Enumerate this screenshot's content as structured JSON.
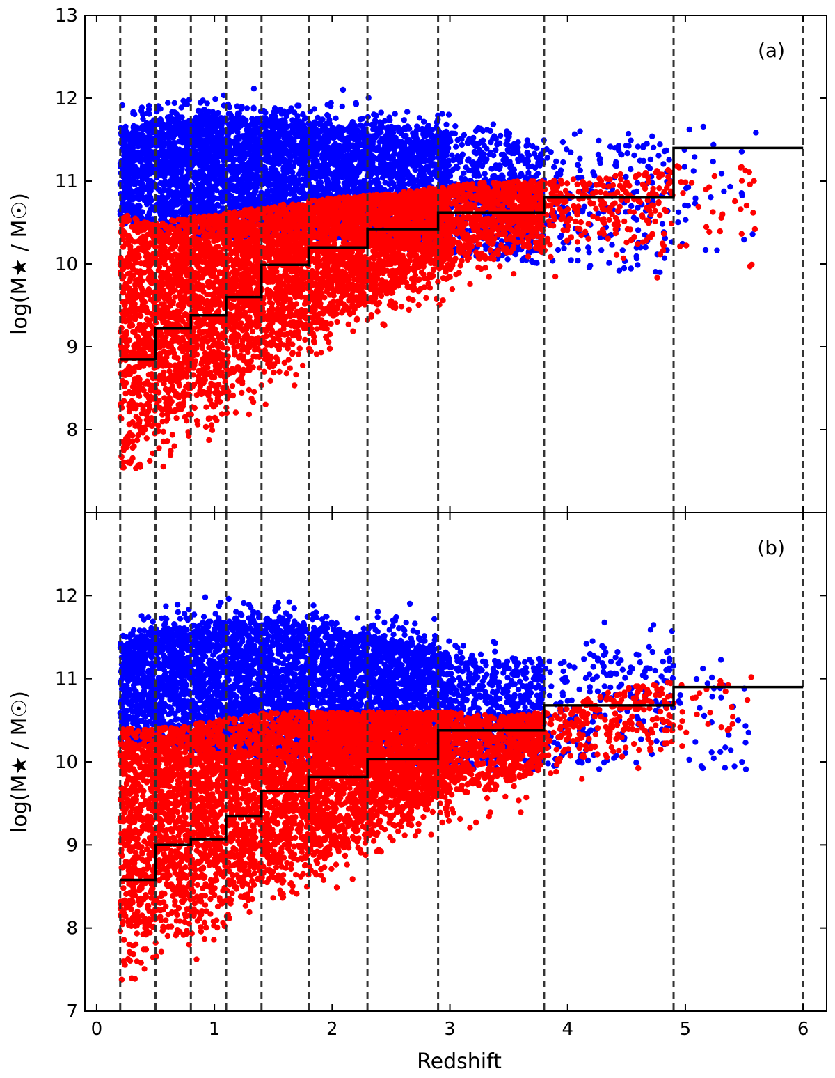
{
  "chart_data": {
    "type": "scatter",
    "xlabel": "Redshift",
    "ylabel": "log(M★ / M☉)",
    "xlim": [
      -0.1,
      6.2
    ],
    "xticks": [
      0,
      1,
      2,
      3,
      4,
      5,
      6
    ],
    "xtick_labels": [
      "0",
      "1",
      "2",
      "3",
      "4",
      "5",
      "6"
    ],
    "bin_edges": [
      0.2,
      0.5,
      0.8,
      1.1,
      1.4,
      1.8,
      2.3,
      2.9,
      3.8,
      4.9,
      6.0
    ],
    "series_legend": [
      {
        "name": "blue points",
        "color": "#0000ff"
      },
      {
        "name": "red points",
        "color": "#ff0000"
      },
      {
        "name": "mass completeness limit",
        "color": "#000000"
      }
    ],
    "panels": [
      {
        "label": "(a)",
        "ylim": [
          7,
          13
        ],
        "yticks": [
          8,
          9,
          10,
          11,
          12,
          13
        ],
        "ytick_labels": [
          "8",
          "9",
          "10",
          "11",
          "12",
          "13"
        ],
        "mass_limit": [
          8.85,
          9.22,
          9.38,
          9.6,
          9.99,
          10.2,
          10.42,
          10.62,
          10.8,
          11.4
        ],
        "blue_envelope": {
          "z": [
            0.2,
            0.5,
            1.0,
            1.5,
            2.0,
            2.5,
            3.0,
            3.5,
            3.8,
            4.5,
            5.0,
            5.5
          ],
          "upper": [
            11.6,
            11.75,
            11.8,
            11.75,
            11.7,
            11.65,
            11.6,
            11.5,
            11.4,
            11.5,
            11.55,
            11.45
          ],
          "lower": [
            10.5,
            10.4,
            10.3,
            10.3,
            10.3,
            10.2,
            10.1,
            10.05,
            10.0,
            9.9,
            9.8,
            9.9
          ]
        },
        "red_envelope": {
          "z": [
            0.2,
            0.5,
            1.0,
            1.5,
            2.0,
            2.5,
            3.0,
            3.5,
            3.8,
            4.5,
            5.0,
            5.5
          ],
          "upper": [
            10.6,
            10.5,
            10.6,
            10.7,
            10.8,
            10.85,
            10.95,
            11.0,
            11.0,
            11.1,
            11.2,
            11.25
          ],
          "lower": [
            7.6,
            7.9,
            8.2,
            8.8,
            9.2,
            9.6,
            9.9,
            10.1,
            10.2,
            10.2,
            10.0,
            10.3
          ]
        }
      },
      {
        "label": "(b)",
        "ylim": [
          7,
          13
        ],
        "yticks": [
          7,
          8,
          9,
          10,
          11,
          12
        ],
        "ytick_labels": [
          "7",
          "8",
          "9",
          "10",
          "11",
          "12"
        ],
        "mass_limit": [
          8.58,
          9.0,
          9.07,
          9.35,
          9.65,
          9.82,
          10.03,
          10.38,
          10.68,
          10.9
        ],
        "blue_envelope": {
          "z": [
            0.2,
            0.5,
            1.0,
            1.5,
            2.0,
            2.5,
            3.0,
            3.5,
            3.8,
            4.5,
            5.0,
            5.5
          ],
          "upper": [
            11.4,
            11.6,
            11.7,
            11.7,
            11.6,
            11.5,
            11.3,
            11.2,
            11.2,
            11.4,
            11.4,
            11.3
          ],
          "lower": [
            10.2,
            10.2,
            10.1,
            10.0,
            10.0,
            9.95,
            9.9,
            9.9,
            9.9,
            9.9,
            9.9,
            9.9
          ]
        },
        "red_envelope": {
          "z": [
            0.2,
            0.5,
            1.0,
            1.5,
            2.0,
            2.5,
            3.0,
            3.5,
            3.8,
            4.5,
            5.0,
            5.5
          ],
          "upper": [
            10.4,
            10.4,
            10.5,
            10.6,
            10.6,
            10.6,
            10.6,
            10.55,
            10.6,
            10.9,
            11.0,
            11.1
          ],
          "lower": [
            7.4,
            7.9,
            8.1,
            8.5,
            8.8,
            9.2,
            9.5,
            9.7,
            9.9,
            10.0,
            10.1,
            10.3
          ]
        }
      }
    ]
  }
}
